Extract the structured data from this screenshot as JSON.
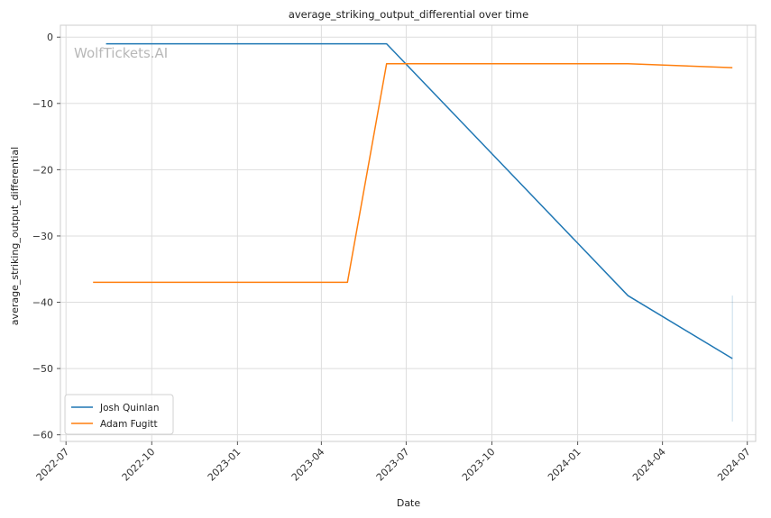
{
  "chart_data": {
    "type": "line",
    "title": "average_striking_output_differential over time",
    "xlabel": "Date",
    "ylabel": "average_striking_output_differential",
    "watermark": "WolfTickets.AI",
    "xlim": [
      "2022-06-25",
      "2024-07-10"
    ],
    "ylim": [
      -61,
      1.8
    ],
    "x_ticks": [
      "2022-07",
      "2022-10",
      "2023-01",
      "2023-04",
      "2023-07",
      "2023-10",
      "2024-01",
      "2024-04",
      "2024-07"
    ],
    "y_ticks": [
      0,
      -10,
      -20,
      -30,
      -40,
      -50,
      -60
    ],
    "y_tick_labels": [
      "0",
      "−10",
      "−20",
      "−30",
      "−40",
      "−50",
      "−60"
    ],
    "grid": true,
    "legend_position": "lower-left",
    "series": [
      {
        "name": "Josh Quinlan",
        "color": "#1f77b4",
        "x": [
          "2022-08-13",
          "2023-06-10",
          "2024-02-24",
          "2024-06-15"
        ],
        "y": [
          -1,
          -1,
          -39,
          -48.5
        ],
        "band": {
          "x": "2024-06-15",
          "low": -58,
          "high": -39,
          "color": "#1f77b4"
        }
      },
      {
        "name": "Adam Fugitt",
        "color": "#ff7f0e",
        "x": [
          "2022-07-30",
          "2023-04-29",
          "2023-06-10",
          "2024-02-24",
          "2024-06-15"
        ],
        "y": [
          -37,
          -37,
          -4,
          -4,
          -4.6
        ]
      }
    ]
  }
}
